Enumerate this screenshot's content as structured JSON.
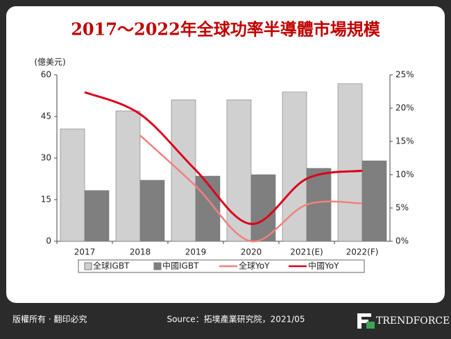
{
  "chart_data": {
    "type": "bar-line",
    "title": "2017～2022年全球功率半導體市場規模",
    "y_label": "(億美元)",
    "categories": [
      "2017",
      "2018",
      "2019",
      "2020",
      "2021(E)",
      "2022(F)"
    ],
    "series": [
      {
        "name": "全球IGBT",
        "type": "bar",
        "color": "#d0d0d0",
        "values": [
          40.5,
          47,
          51,
          51,
          53.8,
          56.8
        ]
      },
      {
        "name": "中國IGBT",
        "type": "bar",
        "color": "#7f7f7f",
        "values": [
          18.3,
          22,
          23.5,
          24,
          26.3,
          29
        ]
      },
      {
        "name": "全球YoY",
        "type": "line",
        "axis": "y2",
        "color": "#f08080",
        "values": [
          null,
          15.9,
          8.3,
          0,
          5.5,
          5.7
        ]
      },
      {
        "name": "中國YoY",
        "type": "line",
        "axis": "y2",
        "color": "#d9001b",
        "values": [
          22.4,
          19.1,
          10.7,
          2.6,
          9.4,
          10.6
        ]
      }
    ],
    "ylim": [
      0,
      60
    ],
    "yticks": [
      0,
      15,
      30,
      45,
      60
    ],
    "y2lim": [
      0,
      25
    ],
    "y2ticks": [
      {
        "value": 0,
        "label": "0%"
      },
      {
        "value": 5,
        "label": "5%"
      },
      {
        "value": 10,
        "label": "10%"
      },
      {
        "value": 15,
        "label": "15%"
      },
      {
        "value": 20,
        "label": "20%"
      },
      {
        "value": 25,
        "label": "25%"
      }
    ],
    "legend": "bottom"
  },
  "footer": {
    "copyright": "版權所有 · 翻印必究",
    "source": "Source：拓墣產業研究院，2021/05",
    "brand": "TRENDFORCE"
  }
}
